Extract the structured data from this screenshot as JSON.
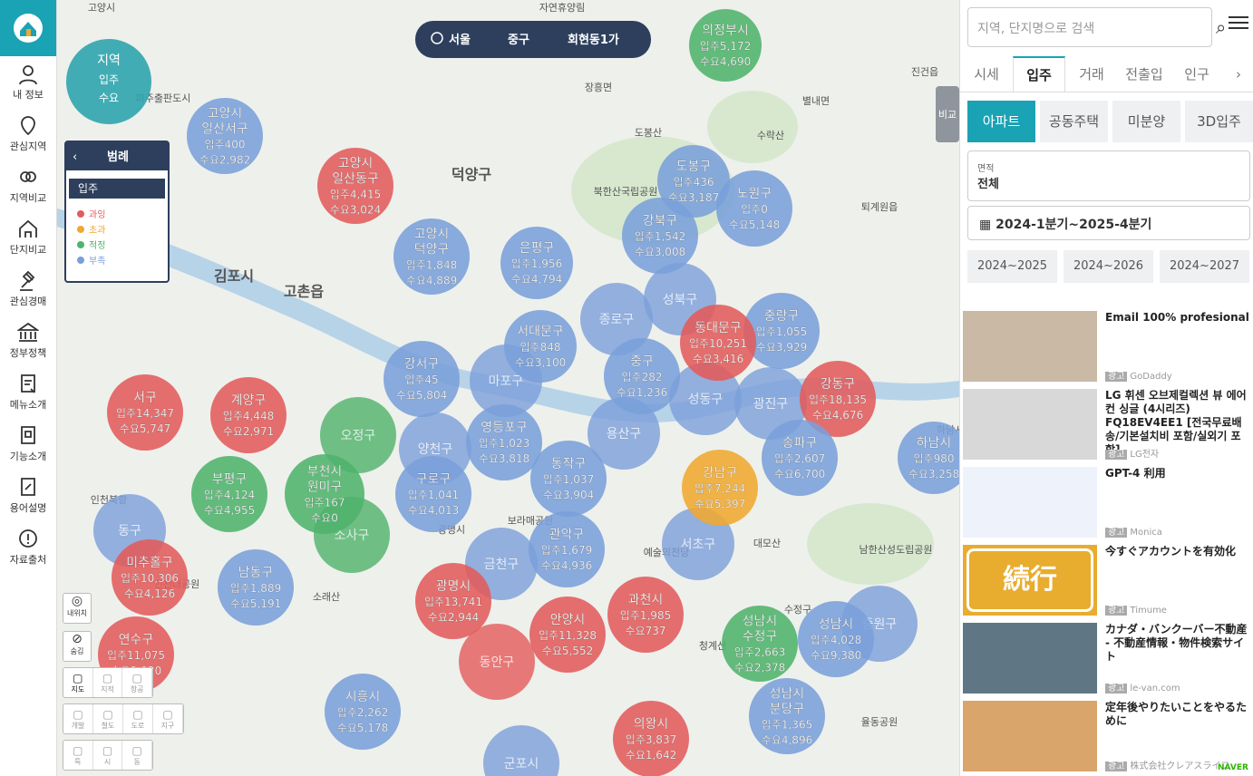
{
  "sidebar": {
    "items": [
      "내 정보",
      "관심지역",
      "지역비교",
      "단지비교",
      "관심경매",
      "정부정책",
      "메뉴소개",
      "기능소개",
      "용어설명",
      "자료출처"
    ]
  },
  "location": {
    "city": "서울",
    "district": "중구",
    "dong": "회현동1가"
  },
  "region_key": [
    "지역",
    "입주",
    "수요"
  ],
  "legend": {
    "title": "범례",
    "select": "입주",
    "items": [
      {
        "label": "과잉",
        "color": "#e35b5b"
      },
      {
        "label": "초과",
        "color": "#f0a830"
      },
      {
        "label": "적정",
        "color": "#4fb36b"
      },
      {
        "label": "부족",
        "color": "#7a9fd9"
      }
    ]
  },
  "compare_tab": "비교",
  "map_labels": [
    "김포시",
    "덕양구",
    "고촌읍",
    "광명시",
    "예술의전당",
    "대모산",
    "남한산성도립공원",
    "진건읍",
    "퇴계원읍",
    "별내면",
    "장흥면",
    "수락산",
    "도봉산",
    "북한산국립공원",
    "소래산",
    "보라매공원",
    "청계산",
    "율동공원",
    "고양시",
    "파주출판도시",
    "인천북항",
    "인천대공원",
    "수정구",
    "하남시",
    "자연휴양림"
  ],
  "bubbles": [
    {
      "name": [
        "의정부시"
      ],
      "supply": "입주5,172",
      "demand": "수요4,690",
      "color": "#4fb36b"
    },
    {
      "name": [
        "고양시",
        "일산서구"
      ],
      "supply": "입주400",
      "demand": "수요2,982",
      "color": "#7a9fd9"
    },
    {
      "name": [
        "고양시",
        "일산동구"
      ],
      "supply": "입주4,415",
      "demand": "수요3,024",
      "color": "#e35b5b"
    },
    {
      "name": [
        "고양시",
        "덕양구"
      ],
      "supply": "입주1,848",
      "demand": "수요4,889",
      "color": "#7a9fd9"
    },
    {
      "name": [
        "은평구"
      ],
      "supply": "입주1,956",
      "demand": "수요4,794",
      "color": "#7a9fd9"
    },
    {
      "name": [
        "도봉구"
      ],
      "supply": "입주436",
      "demand": "수요3,187",
      "color": "#7a9fd9"
    },
    {
      "name": [
        "노원구"
      ],
      "supply": "입주0",
      "demand": "수요5,148",
      "color": "#7a9fd9"
    },
    {
      "name": [
        "강북구"
      ],
      "supply": "입주1,542",
      "demand": "수요3,008",
      "color": "#7a9fd9"
    },
    {
      "name": [
        "중랑구"
      ],
      "supply": "입주1,055",
      "demand": "수요3,929",
      "color": "#7a9fd9"
    },
    {
      "name": [
        "동대문구"
      ],
      "supply": "입주10,251",
      "demand": "수요3,416",
      "color": "#e35b5b"
    },
    {
      "name": [
        "서대문구"
      ],
      "supply": "입주848",
      "demand": "수요3,100",
      "color": "#7a9fd9"
    },
    {
      "name": [
        "중구"
      ],
      "supply": "입주282",
      "demand": "수요1,236",
      "color": "#7a9fd9"
    },
    {
      "name": [
        "강서구"
      ],
      "supply": "입주45",
      "demand": "수요5,804",
      "color": "#7a9fd9"
    },
    {
      "name": [
        "강동구"
      ],
      "supply": "입주18,135",
      "demand": "수요4,676",
      "color": "#e35b5b"
    },
    {
      "name": [
        "서구"
      ],
      "supply": "입주14,347",
      "demand": "수요5,747",
      "color": "#e35b5b"
    },
    {
      "name": [
        "계양구"
      ],
      "supply": "입주4,448",
      "demand": "수요2,971",
      "color": "#e35b5b"
    },
    {
      "name": [
        "영등포구"
      ],
      "supply": "입주1,023",
      "demand": "수요3,818",
      "color": "#7a9fd9"
    },
    {
      "name": [
        "송파구"
      ],
      "supply": "입주2,607",
      "demand": "수요6,700",
      "color": "#7a9fd9"
    },
    {
      "name": [
        "하남시"
      ],
      "supply": "입주980",
      "demand": "수요3,258",
      "color": "#7a9fd9"
    },
    {
      "name": [
        "부천시",
        "원미구"
      ],
      "supply": "입주167",
      "demand": "수요0",
      "color": "#4fb36b"
    },
    {
      "name": [
        "동작구"
      ],
      "supply": "입주1,037",
      "demand": "수요3,904",
      "color": "#7a9fd9"
    },
    {
      "name": [
        "구로구"
      ],
      "supply": "입주1,041",
      "demand": "수요4,013",
      "color": "#7a9fd9"
    },
    {
      "name": [
        "부평구"
      ],
      "supply": "입주4,124",
      "demand": "수요4,955",
      "color": "#4fb36b"
    },
    {
      "name": [
        "강남구"
      ],
      "supply": "입주7,244",
      "demand": "수요5,397",
      "color": "#f0a830"
    },
    {
      "name": [
        "관악구"
      ],
      "supply": "입주1,679",
      "demand": "수요4,936",
      "color": "#7a9fd9"
    },
    {
      "name": [
        "미추홀구"
      ],
      "supply": "입주10,306",
      "demand": "수요4,126",
      "color": "#e35b5b"
    },
    {
      "name": [
        "남동구"
      ],
      "supply": "입주1,889",
      "demand": "수요5,191",
      "color": "#7a9fd9"
    },
    {
      "name": [
        "광명시"
      ],
      "supply": "입주13,741",
      "demand": "수요2,944",
      "color": "#e35b5b"
    },
    {
      "name": [
        "과천시"
      ],
      "supply": "입주1,985",
      "demand": "수요737",
      "color": "#e35b5b"
    },
    {
      "name": [
        "안양시"
      ],
      "supply": "입주11,328",
      "demand": "수요5,552",
      "color": "#e35b5b"
    },
    {
      "name": [
        "성남시",
        "수정구"
      ],
      "supply": "입주2,663",
      "demand": "수요2,378",
      "color": "#4fb36b"
    },
    {
      "name": [
        "성남시"
      ],
      "supply": "입주4,028",
      "demand": "수요9,380",
      "color": "#7a9fd9"
    },
    {
      "name": [
        "연수구"
      ],
      "supply": "입주11,075",
      "demand": "수요2,020",
      "color": "#e35b5b"
    },
    {
      "name": [
        "시흥시"
      ],
      "supply": "입주2,262",
      "demand": "수요5,178",
      "color": "#7a9fd9"
    },
    {
      "name": [
        "성남시",
        "분당구"
      ],
      "supply": "입주1,365",
      "demand": "수요4,896",
      "color": "#7a9fd9"
    },
    {
      "name": [
        "의왕시"
      ],
      "supply": "입주3,837",
      "demand": "수요1,642",
      "color": "#e35b5b"
    },
    {
      "name": [
        "군포시"
      ],
      "color": "#7a9fd9"
    },
    {
      "name": [
        "마포구"
      ],
      "color": "#7a9fd9"
    },
    {
      "name": [
        "용산구"
      ],
      "color": "#7a9fd9"
    },
    {
      "name": [
        "성북구"
      ],
      "color": "#7a9fd9"
    },
    {
      "name": [
        "성동구"
      ],
      "color": "#7a9fd9"
    },
    {
      "name": [
        "광진구"
      ],
      "color": "#7a9fd9"
    },
    {
      "name": [
        "양천구"
      ],
      "color": "#7a9fd9"
    },
    {
      "name": [
        "금천구"
      ],
      "color": "#7a9fd9"
    },
    {
      "name": [
        "종로구"
      ],
      "color": "#7a9fd9"
    },
    {
      "name": [
        "서초구"
      ],
      "color": "#7a9fd9"
    },
    {
      "name": [
        "동구"
      ],
      "color": "#7a9fd9"
    },
    {
      "name": [
        "중원구"
      ],
      "color": "#7a9fd9"
    },
    {
      "name": [
        "오정구"
      ],
      "color": "#4fb36b"
    },
    {
      "name": [
        "소사구"
      ],
      "color": "#4fb36b"
    },
    {
      "name": [
        "동안구"
      ],
      "color": "#e35b5b"
    }
  ],
  "map_controls": {
    "locate": "내위치",
    "hide": "숨김",
    "layers": [
      "지도",
      "지적",
      "항공"
    ],
    "overlays": [
      "개발",
      "철도",
      "도로",
      "지구"
    ],
    "levels": [
      "특",
      "시",
      "동"
    ]
  },
  "panel": {
    "search_placeholder": "지역, 단지명으로 검색",
    "tabs": [
      "시세",
      "입주",
      "거래",
      "전출입",
      "인구"
    ],
    "types": [
      "아파트",
      "공동주택",
      "미분양",
      "3D입주"
    ],
    "area_label": "면적",
    "area_value": "전체",
    "period": "2024-1분기~2025-4분기",
    "ranges": [
      "2024~2025",
      "2024~2026",
      "2024~2027"
    ],
    "ads": [
      {
        "title": "Email 100% profesional",
        "badge": "광고",
        "source": "GoDaddy"
      },
      {
        "title": "LG 휘센 오브제컬렉션 뷰 에어컨 싱글 (4시리즈) FQ18EV4EE1 [전국무료배송/기본설치비 포함/실외기 포함]",
        "badge": "광고",
        "source": "LG전자"
      },
      {
        "title": "GPT-4 利用",
        "badge": "광고",
        "source": "Monica"
      },
      {
        "title": "今すぐアカウントを有効化",
        "badge": "광고",
        "source": "Timume",
        "image_text": "続行"
      },
      {
        "title": "カナダ・バンクーバー不動産 - 不動産情報・物件検索サイト",
        "badge": "광고",
        "source": "le-van.com"
      },
      {
        "title": "定年後やりたいことをやるために",
        "badge": "광고",
        "source": "株式会社クレアスライフ"
      }
    ],
    "ad_network": "NAVER"
  }
}
